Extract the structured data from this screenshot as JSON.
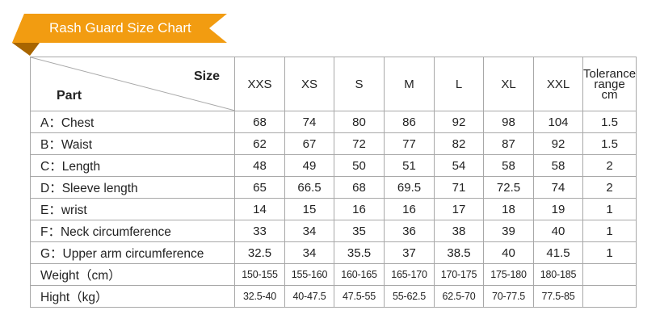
{
  "banner": {
    "title": "Rash Guard Size Chart",
    "color": "#f29c11",
    "fold_color": "#a86500"
  },
  "table": {
    "corner": {
      "size_label": "Size",
      "part_label": "Part"
    },
    "sizes": [
      "XXS",
      "XS",
      "S",
      "M",
      "L",
      "XL",
      "XXL"
    ],
    "tolerance_header": [
      "Tolerance",
      "range",
      "cm"
    ],
    "rows": [
      {
        "part": "A：Chest",
        "values": [
          "68",
          "74",
          "80",
          "86",
          "92",
          "98",
          "104"
        ],
        "tolerance": "1.5"
      },
      {
        "part": "B：Waist",
        "values": [
          "62",
          "67",
          "72",
          "77",
          "82",
          "87",
          "92"
        ],
        "tolerance": "1.5"
      },
      {
        "part": "C：Length",
        "values": [
          "48",
          "49",
          "50",
          "51",
          "54",
          "58",
          "58"
        ],
        "tolerance": "2"
      },
      {
        "part": "D：Sleeve length",
        "values": [
          "65",
          "66.5",
          "68",
          "69.5",
          "71",
          "72.5",
          "74"
        ],
        "tolerance": "2"
      },
      {
        "part": "E：wrist",
        "values": [
          "14",
          "15",
          "16",
          "16",
          "17",
          "18",
          "19"
        ],
        "tolerance": "1"
      },
      {
        "part": "F：Neck circumference",
        "values": [
          "33",
          "34",
          "35",
          "36",
          "38",
          "39",
          "40"
        ],
        "tolerance": "1"
      },
      {
        "part": "G：Upper arm circumference",
        "values": [
          "32.5",
          "34",
          "35.5",
          "37",
          "38.5",
          "40",
          "41.5"
        ],
        "tolerance": "1"
      },
      {
        "part": "Weight（cm）",
        "values": [
          "150-155",
          "155-160",
          "160-165",
          "165-170",
          "170-175",
          "175-180",
          "180-185"
        ],
        "tolerance": "",
        "small": true
      },
      {
        "part": "Hight（kg）",
        "values": [
          "32.5-40",
          "40-47.5",
          "47.5-55",
          "55-62.5",
          "62.5-70",
          "70-77.5",
          "77.5-85"
        ],
        "tolerance": "",
        "small": true
      }
    ]
  }
}
